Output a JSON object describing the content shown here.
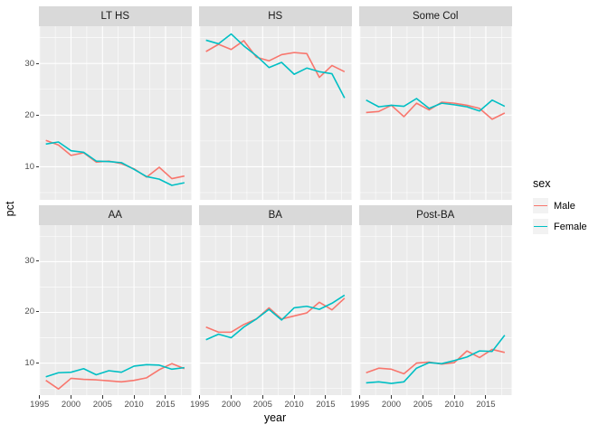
{
  "chart_data": {
    "type": "line",
    "title": "",
    "xlabel": "year",
    "ylabel": "pct",
    "x": [
      1996,
      1998,
      2000,
      2002,
      2004,
      2006,
      2008,
      2010,
      2012,
      2014,
      2016,
      2018
    ],
    "x_ticks": [
      1995,
      2000,
      2005,
      2010,
      2015
    ],
    "x_minor_ticks": [
      1997.5,
      2002.5,
      2007.5,
      2012.5,
      2017.5
    ],
    "y_ticks": [
      10,
      20,
      30
    ],
    "y_minor_ticks": [
      5,
      15,
      25,
      35
    ],
    "x_domain": [
      1994.9,
      2019.1
    ],
    "y_domain": [
      3.6,
      37.2
    ],
    "grid": "on",
    "legend_position": "right",
    "legend": {
      "title": "sex",
      "entries": [
        {
          "label": "Male",
          "color": "#F8766D"
        },
        {
          "label": "Female",
          "color": "#00BFC4"
        }
      ]
    },
    "facets": [
      {
        "label": "LT HS",
        "series": [
          {
            "name": "Male",
            "values": [
              15.1,
              14.2,
              12.2,
              12.7,
              10.9,
              11.1,
              10.6,
              9.6,
              8.0,
              9.9,
              7.7,
              8.2
            ]
          },
          {
            "name": "Female",
            "values": [
              14.4,
              14.8,
              13.1,
              12.8,
              11.1,
              11.0,
              10.8,
              9.5,
              8.1,
              7.6,
              6.4,
              6.9
            ]
          }
        ]
      },
      {
        "label": "HS",
        "series": [
          {
            "name": "Male",
            "values": [
              32.3,
              33.7,
              32.7,
              34.4,
              31.2,
              30.5,
              31.7,
              32.1,
              31.9,
              27.3,
              29.6,
              28.4
            ]
          },
          {
            "name": "Female",
            "values": [
              34.5,
              33.8,
              35.7,
              33.4,
              31.5,
              29.2,
              30.2,
              27.9,
              29.1,
              28.4,
              28.0,
              23.3
            ]
          }
        ]
      },
      {
        "label": "Some Col",
        "series": [
          {
            "name": "Male",
            "values": [
              20.5,
              20.7,
              21.9,
              19.7,
              22.3,
              21.0,
              22.5,
              22.3,
              21.9,
              21.3,
              19.2,
              20.4
            ]
          },
          {
            "name": "Female",
            "values": [
              22.9,
              21.6,
              21.9,
              21.7,
              23.2,
              21.3,
              22.3,
              22.0,
              21.6,
              20.8,
              22.9,
              21.7
            ]
          }
        ]
      },
      {
        "label": "AA",
        "series": [
          {
            "name": "Male",
            "values": [
              6.6,
              4.9,
              7.0,
              6.8,
              6.7,
              6.5,
              6.3,
              6.6,
              7.1,
              8.7,
              9.9,
              8.9
            ]
          },
          {
            "name": "Female",
            "values": [
              7.3,
              8.1,
              8.2,
              8.9,
              7.7,
              8.5,
              8.2,
              9.4,
              9.7,
              9.6,
              8.8,
              9.1
            ]
          }
        ]
      },
      {
        "label": "BA",
        "series": [
          {
            "name": "Male",
            "values": [
              17.1,
              16.1,
              16.1,
              17.6,
              18.7,
              20.9,
              18.7,
              19.3,
              19.9,
              22.0,
              20.5,
              22.8
            ]
          },
          {
            "name": "Female",
            "values": [
              14.6,
              15.7,
              15.0,
              17.1,
              18.7,
              20.6,
              18.5,
              20.9,
              21.2,
              20.6,
              21.8,
              23.4
            ]
          }
        ]
      },
      {
        "label": "Post-BA",
        "series": [
          {
            "name": "Male",
            "values": [
              8.1,
              9.0,
              8.8,
              7.9,
              10.0,
              10.2,
              9.8,
              10.1,
              12.4,
              11.1,
              12.7,
              12.1
            ]
          },
          {
            "name": "Female",
            "values": [
              6.1,
              6.3,
              6.0,
              6.3,
              9.0,
              10.1,
              9.9,
              10.5,
              11.2,
              12.4,
              12.3,
              15.5
            ]
          }
        ]
      }
    ],
    "colors": {
      "male": "#F8766D",
      "female": "#00BFC4",
      "panel_bg": "#EBEBEB",
      "strip_bg": "#D9D9D9",
      "grid": "#FFFFFF",
      "tick_text": "#4D4D4D",
      "legend_key_bg": "#F2F2F2"
    }
  }
}
